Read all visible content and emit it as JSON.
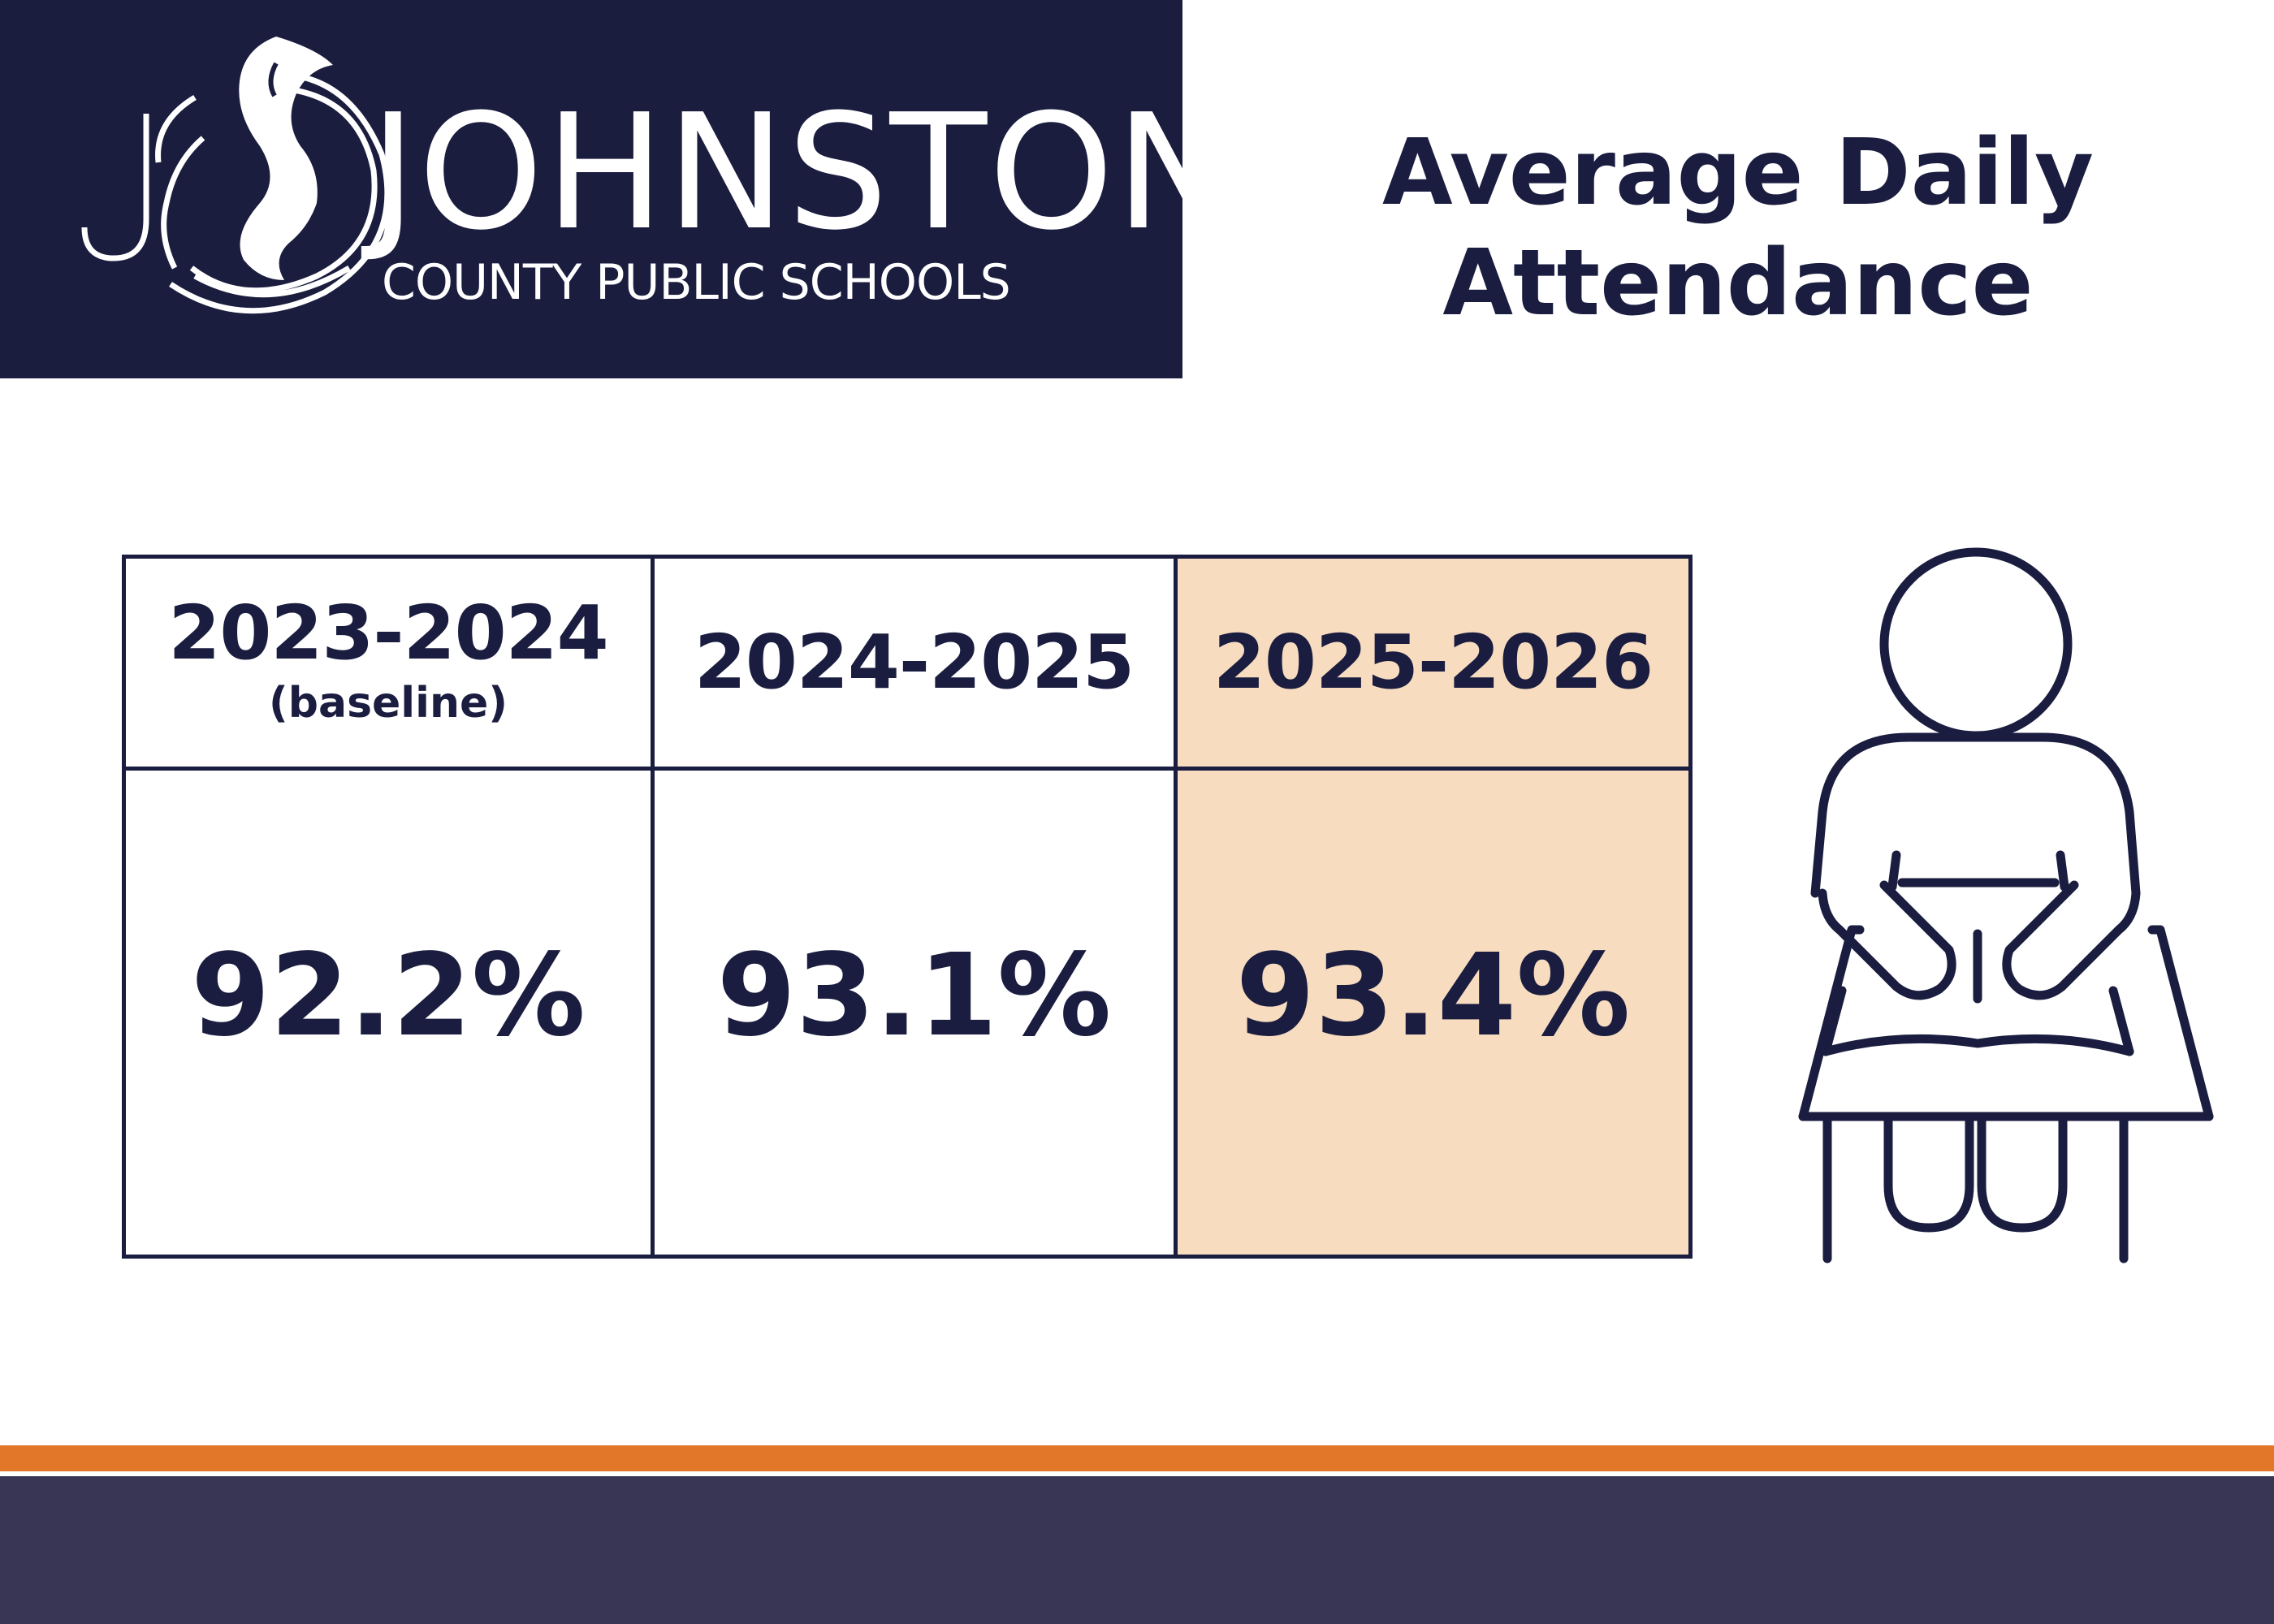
{
  "brand": {
    "wordmark": "JOHNSTON",
    "subtitle": "COUNTY PUBLIC SCHOOLS",
    "logo_icon": "flame-swirl-logo",
    "background_color": "#1b1d3f"
  },
  "page_title": "Average Daily Attendance",
  "table": {
    "columns": [
      {
        "year": "2023-2024",
        "note": "(baseline)",
        "value": "92.2%",
        "highlighted": false
      },
      {
        "year": "2024-2025",
        "note": "",
        "value": "93.1%",
        "highlighted": false
      },
      {
        "year": "2025-2026",
        "note": "",
        "value": "93.4%",
        "highlighted": true
      }
    ],
    "highlight_color": "#f8dcc0",
    "border_color": "#1a1d3f"
  },
  "illustration": {
    "icon": "student-at-desk-reading-icon"
  },
  "footer": {
    "accent_color": "#e37729",
    "base_color": "#393655"
  }
}
